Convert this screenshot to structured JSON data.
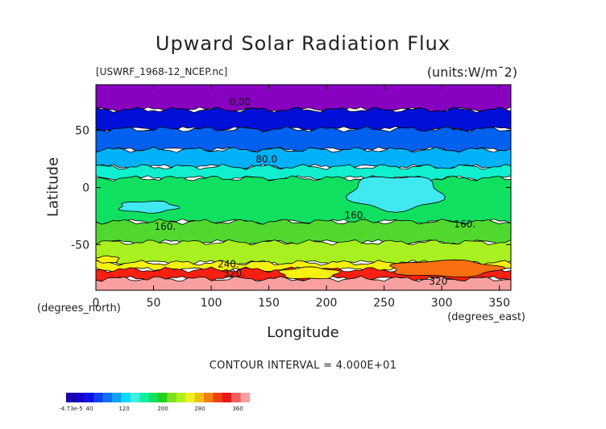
{
  "chart_data": {
    "type": "heatmap",
    "title": "Upward Solar Radiation Flux",
    "file_id": "[USWRF_1968-12_NCEP.nc]",
    "units": "(units:W/m¯2)",
    "xlabel": "Longitude",
    "xlabel_sub": "(degrees_north)",
    "x_units": "(degrees_east)",
    "ylabel": "Latitude",
    "xlim": [
      0,
      360
    ],
    "ylim": [
      -90,
      90
    ],
    "x_ticks": [
      0,
      50,
      100,
      150,
      200,
      250,
      300,
      350
    ],
    "y_ticks": [
      50,
      0,
      -50
    ],
    "contour_interval_text": "CONTOUR INTERVAL = 4.000E+01",
    "contour_labels": [
      {
        "text": "0.00",
        "lon": 125,
        "lat": 72
      },
      {
        "text": "80.0",
        "lon": 148,
        "lat": 22
      },
      {
        "text": "160.",
        "lon": 225,
        "lat": -27
      },
      {
        "text": "160.",
        "lon": 60,
        "lat": -37
      },
      {
        "text": "160.",
        "lon": 320,
        "lat": -35
      },
      {
        "text": "240.",
        "lon": 115,
        "lat": -70
      },
      {
        "text": "320.",
        "lon": 120,
        "lat": -78
      },
      {
        "text": "320",
        "lon": 297,
        "lat": -85
      }
    ],
    "colorbar": {
      "colors": [
        "#1a00a8",
        "#1400c8",
        "#1010e8",
        "#1040f0",
        "#1070f4",
        "#10a0f8",
        "#10d8f8",
        "#40f0e0",
        "#10f0a0",
        "#10e060",
        "#20d020",
        "#80e020",
        "#b0f020",
        "#f0f020",
        "#f0c010",
        "#f08010",
        "#f04010",
        "#e81818",
        "#f06060",
        "#f8a0a0"
      ],
      "tick_labels": [
        "-4.73e-5",
        "40",
        "120",
        "200",
        "280",
        "360"
      ]
    },
    "bands": [
      {
        "lat_top": 90,
        "lat_bottom": 68,
        "color": "#8800c0"
      },
      {
        "lat_top": 68,
        "lat_bottom": 51,
        "color": "#0010d8"
      },
      {
        "lat_top": 51,
        "lat_bottom": 33,
        "color": "#0060f0"
      },
      {
        "lat_top": 33,
        "lat_bottom": 18,
        "color": "#00b0f8"
      },
      {
        "lat_top": 18,
        "lat_bottom": 8,
        "color": "#10f0d0"
      },
      {
        "lat_top": 8,
        "lat_bottom": -30,
        "color": "#10e060"
      },
      {
        "lat_top": -30,
        "lat_bottom": -48,
        "color": "#50d830"
      },
      {
        "lat_top": -48,
        "lat_bottom": -66,
        "color": "#a8f020"
      },
      {
        "lat_top": -66,
        "lat_bottom": -72,
        "color": "#f8f010"
      },
      {
        "lat_top": -72,
        "lat_bottom": -80,
        "color": "#f82010"
      },
      {
        "lat_top": -80,
        "lat_bottom": -90,
        "color": "#f8a0a0"
      }
    ],
    "patches": [
      {
        "lon": [
          220,
          300
        ],
        "lat": [
          10,
          -20
        ],
        "color": "#40e8f0"
      },
      {
        "lon": [
          20,
          70
        ],
        "lat": [
          -12,
          -22
        ],
        "color": "#40e8f0"
      },
      {
        "lon": [
          255,
          350
        ],
        "lat": [
          -64,
          -78
        ],
        "color": "#f87010"
      },
      {
        "lon": [
          160,
          210
        ],
        "lat": [
          -70,
          -80
        ],
        "color": "#f8f010"
      },
      {
        "lon": [
          0,
          20
        ],
        "lat": [
          -60,
          -66
        ],
        "color": "#f8f010"
      }
    ]
  }
}
